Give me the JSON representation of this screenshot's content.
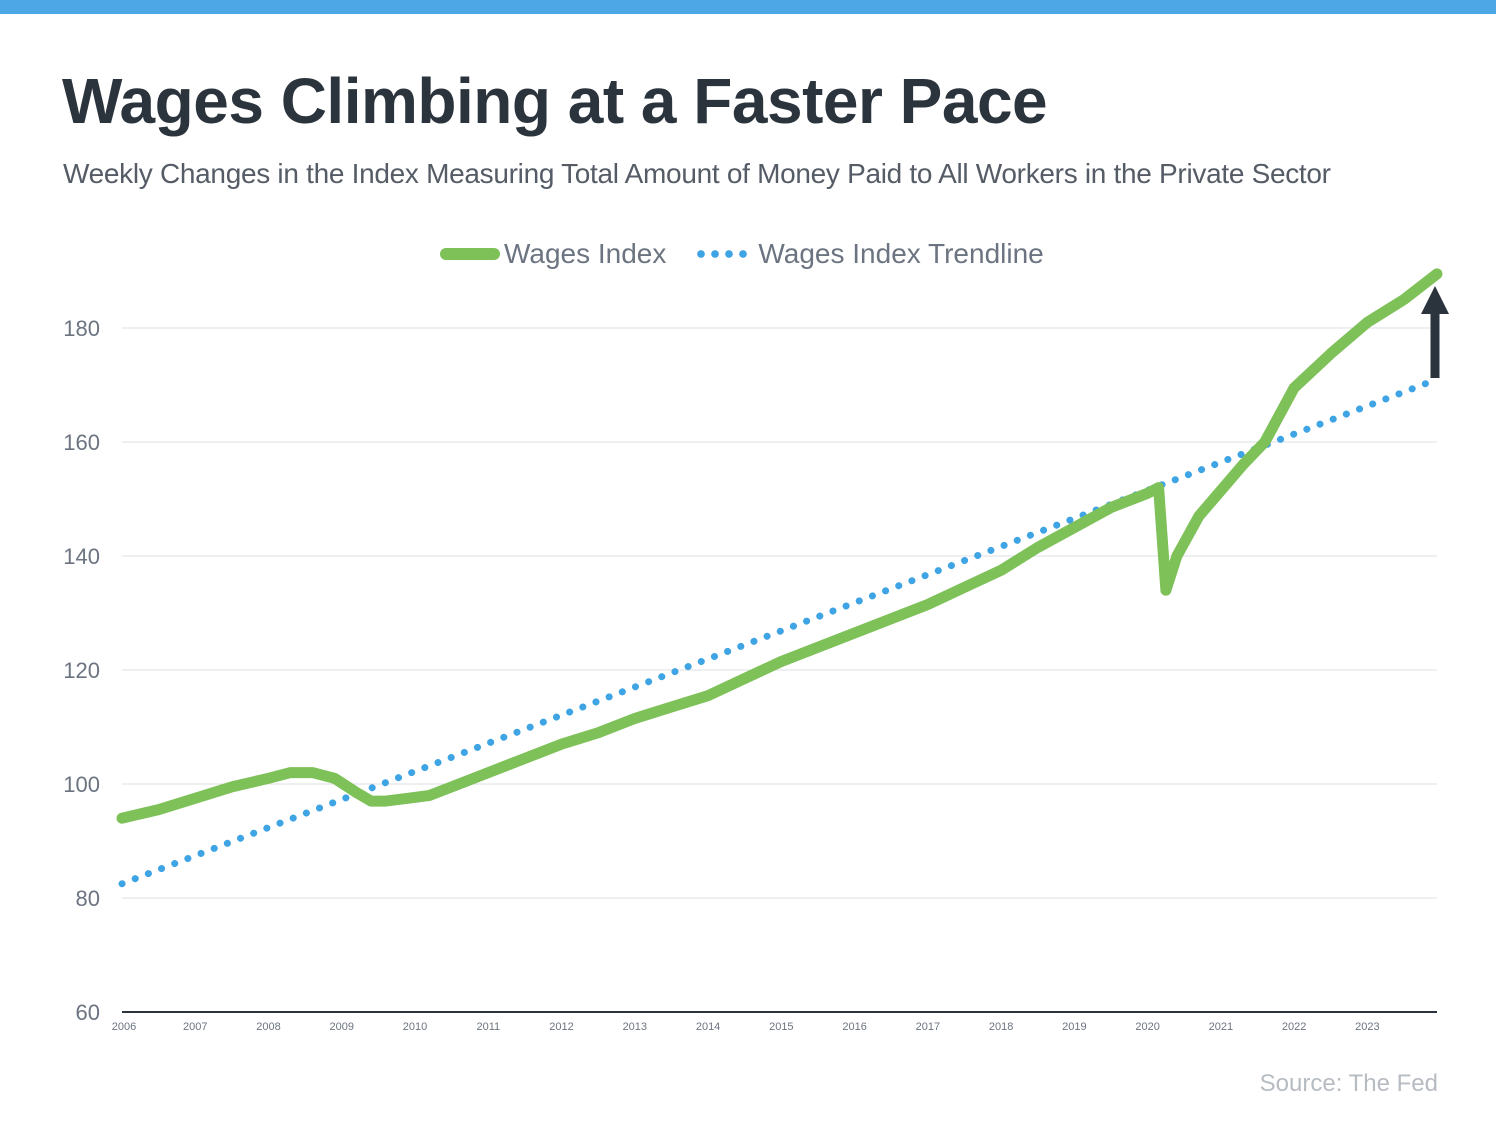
{
  "header": {
    "title": "Wages Climbing at a Faster Pace",
    "subtitle": "Weekly Changes in the Index Measuring Total Amount of Money Paid to All Workers in the Private Sector"
  },
  "legend": {
    "series_label": "Wages Index",
    "trend_label": "Wages Index Trendline"
  },
  "source": "Source: The Fed",
  "colors": {
    "accent_bar": "#4da6e6",
    "wages_line": "#7dc158",
    "trendline": "#3fa4e3",
    "arrow": "#2b333d"
  },
  "chart_data": {
    "type": "line",
    "title": "Wages Climbing at a Faster Pace",
    "subtitle": "Weekly Changes in the Index Measuring Total Amount of Money Paid to All Workers in the Private Sector",
    "xlabel": "",
    "ylabel": "",
    "ylim": [
      60,
      190
    ],
    "xlim": [
      2006.0,
      2023.95
    ],
    "yticks": [
      60,
      80,
      100,
      120,
      140,
      160,
      180
    ],
    "xtick_labels": [
      "2006",
      "2007",
      "2008",
      "2009",
      "2010",
      "2011",
      "2012",
      "2013",
      "2014",
      "2015",
      "2016",
      "2017",
      "2018",
      "2019",
      "2020",
      "2021",
      "2022",
      "2023"
    ],
    "grid": true,
    "legend_position": "top",
    "annotation": "up-arrow",
    "series": [
      {
        "name": "Wages Index",
        "style": "solid",
        "x": [
          2006.0,
          2006.5,
          2007.0,
          2007.5,
          2008.0,
          2008.3,
          2008.6,
          2008.9,
          2009.2,
          2009.4,
          2009.6,
          2009.9,
          2010.2,
          2010.5,
          2011.0,
          2011.5,
          2012.0,
          2012.5,
          2013.0,
          2013.5,
          2014.0,
          2014.5,
          2015.0,
          2015.5,
          2016.0,
          2016.5,
          2017.0,
          2017.5,
          2018.0,
          2018.5,
          2019.0,
          2019.5,
          2020.0,
          2020.15,
          2020.25,
          2020.4,
          2020.7,
          2021.0,
          2021.3,
          2021.6,
          2022.0,
          2022.5,
          2023.0,
          2023.5,
          2023.95
        ],
        "y": [
          94,
          95.5,
          97.5,
          99.5,
          101,
          102,
          102,
          101,
          98.5,
          97,
          97,
          97.5,
          98,
          99.5,
          102,
          104.5,
          107,
          109,
          111.5,
          113.5,
          115.5,
          118.5,
          121.5,
          124,
          126.5,
          129,
          131.5,
          134.5,
          137.5,
          141.5,
          145,
          148.5,
          151,
          152,
          134,
          140,
          147,
          151.5,
          156,
          160,
          169.5,
          175.5,
          181,
          185,
          189.5
        ]
      },
      {
        "name": "Wages Index Trendline",
        "style": "dotted",
        "x": [
          2006.0,
          2023.95
        ],
        "y": [
          82.5,
          171
        ]
      }
    ]
  }
}
